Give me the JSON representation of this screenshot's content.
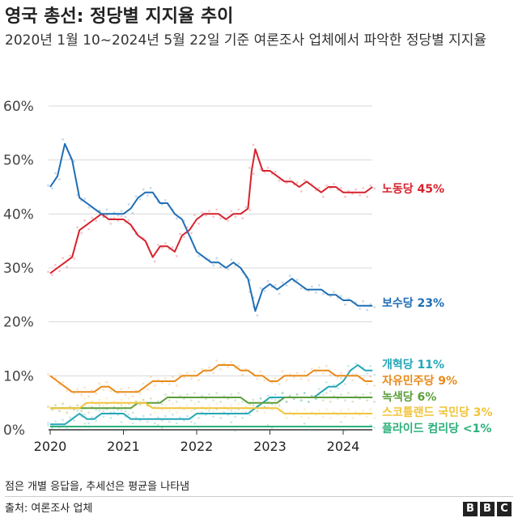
{
  "title": "영국 총선: 정당별 지지율 추이",
  "subtitle": "2020년 1월 10~2024년 5월 22일 기준 여론조사 업체에서 파악한 정당별 지지율",
  "footnote": "점은 개별 응답을, 추세선은 평균을 나타냄",
  "source": "출처: 여론조사 업체",
  "logo": [
    "B",
    "B",
    "C"
  ],
  "chart_data": {
    "type": "line",
    "y_ticks": [
      "60%",
      "50%",
      "40%",
      "30%",
      "20%",
      "10%",
      "0%"
    ],
    "x_ticks": [
      "2020",
      "2021",
      "2022",
      "2023",
      "2024"
    ],
    "ylim": [
      0,
      60
    ],
    "xlim": [
      2020.0,
      2024.4
    ],
    "grid": true,
    "series": [
      {
        "label": "노동당 45%",
        "color": "#d6222d",
        "points": [
          [
            2020.0,
            29
          ],
          [
            2020.1,
            30
          ],
          [
            2020.2,
            31
          ],
          [
            2020.3,
            32
          ],
          [
            2020.4,
            37
          ],
          [
            2020.5,
            38
          ],
          [
            2020.6,
            39
          ],
          [
            2020.7,
            40
          ],
          [
            2020.8,
            39
          ],
          [
            2020.9,
            39
          ],
          [
            2021.0,
            39
          ],
          [
            2021.1,
            38
          ],
          [
            2021.2,
            36
          ],
          [
            2021.3,
            35
          ],
          [
            2021.4,
            32
          ],
          [
            2021.5,
            34
          ],
          [
            2021.6,
            34
          ],
          [
            2021.7,
            33
          ],
          [
            2021.8,
            36
          ],
          [
            2021.9,
            37
          ],
          [
            2022.0,
            39
          ],
          [
            2022.1,
            40
          ],
          [
            2022.2,
            40
          ],
          [
            2022.3,
            40
          ],
          [
            2022.4,
            39
          ],
          [
            2022.5,
            40
          ],
          [
            2022.6,
            40
          ],
          [
            2022.7,
            41
          ],
          [
            2022.75,
            48
          ],
          [
            2022.8,
            52
          ],
          [
            2022.9,
            48
          ],
          [
            2023.0,
            48
          ],
          [
            2023.1,
            47
          ],
          [
            2023.2,
            46
          ],
          [
            2023.3,
            46
          ],
          [
            2023.4,
            45
          ],
          [
            2023.5,
            46
          ],
          [
            2023.6,
            45
          ],
          [
            2023.7,
            44
          ],
          [
            2023.8,
            45
          ],
          [
            2023.9,
            45
          ],
          [
            2024.0,
            44
          ],
          [
            2024.1,
            44
          ],
          [
            2024.2,
            44
          ],
          [
            2024.3,
            44
          ],
          [
            2024.4,
            45
          ]
        ]
      },
      {
        "label": "보수당 23%",
        "color": "#1f6eb5",
        "points": [
          [
            2020.0,
            45
          ],
          [
            2020.1,
            47
          ],
          [
            2020.2,
            53
          ],
          [
            2020.3,
            50
          ],
          [
            2020.4,
            43
          ],
          [
            2020.5,
            42
          ],
          [
            2020.6,
            41
          ],
          [
            2020.7,
            40
          ],
          [
            2020.8,
            40
          ],
          [
            2020.9,
            40
          ],
          [
            2021.0,
            40
          ],
          [
            2021.1,
            41
          ],
          [
            2021.2,
            43
          ],
          [
            2021.3,
            44
          ],
          [
            2021.4,
            44
          ],
          [
            2021.5,
            42
          ],
          [
            2021.6,
            42
          ],
          [
            2021.7,
            40
          ],
          [
            2021.8,
            39
          ],
          [
            2021.9,
            36
          ],
          [
            2022.0,
            33
          ],
          [
            2022.1,
            32
          ],
          [
            2022.2,
            31
          ],
          [
            2022.3,
            31
          ],
          [
            2022.4,
            30
          ],
          [
            2022.5,
            31
          ],
          [
            2022.6,
            30
          ],
          [
            2022.7,
            28
          ],
          [
            2022.75,
            25
          ],
          [
            2022.8,
            22
          ],
          [
            2022.9,
            26
          ],
          [
            2023.0,
            27
          ],
          [
            2023.1,
            26
          ],
          [
            2023.2,
            27
          ],
          [
            2023.3,
            28
          ],
          [
            2023.4,
            27
          ],
          [
            2023.5,
            26
          ],
          [
            2023.6,
            26
          ],
          [
            2023.7,
            26
          ],
          [
            2023.8,
            25
          ],
          [
            2023.9,
            25
          ],
          [
            2024.0,
            24
          ],
          [
            2024.1,
            24
          ],
          [
            2024.2,
            23
          ],
          [
            2024.3,
            23
          ],
          [
            2024.4,
            23
          ]
        ]
      },
      {
        "label": "개혁당 11%",
        "color": "#24a6b8",
        "points": [
          [
            2020.0,
            1
          ],
          [
            2020.1,
            1
          ],
          [
            2020.2,
            1
          ],
          [
            2020.3,
            2
          ],
          [
            2020.4,
            3
          ],
          [
            2020.5,
            2
          ],
          [
            2020.6,
            2
          ],
          [
            2020.7,
            3
          ],
          [
            2020.8,
            3
          ],
          [
            2020.9,
            3
          ],
          [
            2021.0,
            3
          ],
          [
            2021.1,
            2
          ],
          [
            2021.2,
            2
          ],
          [
            2021.3,
            2
          ],
          [
            2021.4,
            2
          ],
          [
            2021.5,
            2
          ],
          [
            2021.6,
            2
          ],
          [
            2021.7,
            2
          ],
          [
            2021.8,
            2
          ],
          [
            2021.9,
            2
          ],
          [
            2022.0,
            3
          ],
          [
            2022.1,
            3
          ],
          [
            2022.2,
            3
          ],
          [
            2022.3,
            3
          ],
          [
            2022.4,
            3
          ],
          [
            2022.5,
            3
          ],
          [
            2022.6,
            3
          ],
          [
            2022.7,
            3
          ],
          [
            2022.8,
            4
          ],
          [
            2022.9,
            5
          ],
          [
            2023.0,
            6
          ],
          [
            2023.1,
            6
          ],
          [
            2023.2,
            6
          ],
          [
            2023.3,
            6
          ],
          [
            2023.4,
            6
          ],
          [
            2023.5,
            6
          ],
          [
            2023.6,
            6
          ],
          [
            2023.7,
            7
          ],
          [
            2023.8,
            8
          ],
          [
            2023.9,
            8
          ],
          [
            2024.0,
            9
          ],
          [
            2024.1,
            11
          ],
          [
            2024.2,
            12
          ],
          [
            2024.3,
            11
          ],
          [
            2024.4,
            11
          ]
        ]
      },
      {
        "label": "자유민주당 9%",
        "color": "#e88a19",
        "points": [
          [
            2020.0,
            10
          ],
          [
            2020.1,
            9
          ],
          [
            2020.2,
            8
          ],
          [
            2020.3,
            7
          ],
          [
            2020.4,
            7
          ],
          [
            2020.5,
            7
          ],
          [
            2020.6,
            7
          ],
          [
            2020.7,
            8
          ],
          [
            2020.8,
            8
          ],
          [
            2020.9,
            7
          ],
          [
            2021.0,
            7
          ],
          [
            2021.1,
            7
          ],
          [
            2021.2,
            7
          ],
          [
            2021.3,
            8
          ],
          [
            2021.4,
            9
          ],
          [
            2021.5,
            9
          ],
          [
            2021.6,
            9
          ],
          [
            2021.7,
            9
          ],
          [
            2021.8,
            10
          ],
          [
            2021.9,
            10
          ],
          [
            2022.0,
            10
          ],
          [
            2022.1,
            11
          ],
          [
            2022.2,
            11
          ],
          [
            2022.3,
            12
          ],
          [
            2022.4,
            12
          ],
          [
            2022.5,
            12
          ],
          [
            2022.6,
            11
          ],
          [
            2022.7,
            11
          ],
          [
            2022.8,
            10
          ],
          [
            2022.9,
            10
          ],
          [
            2023.0,
            9
          ],
          [
            2023.1,
            9
          ],
          [
            2023.2,
            10
          ],
          [
            2023.3,
            10
          ],
          [
            2023.4,
            10
          ],
          [
            2023.5,
            10
          ],
          [
            2023.6,
            11
          ],
          [
            2023.7,
            11
          ],
          [
            2023.8,
            11
          ],
          [
            2023.9,
            10
          ],
          [
            2024.0,
            10
          ],
          [
            2024.1,
            10
          ],
          [
            2024.2,
            10
          ],
          [
            2024.3,
            9
          ],
          [
            2024.4,
            9
          ]
        ]
      },
      {
        "label": "녹색당 6%",
        "color": "#5a9e3a",
        "points": [
          [
            2020.0,
            4
          ],
          [
            2020.1,
            4
          ],
          [
            2020.2,
            4
          ],
          [
            2020.3,
            4
          ],
          [
            2020.4,
            4
          ],
          [
            2020.5,
            4
          ],
          [
            2020.6,
            4
          ],
          [
            2020.7,
            4
          ],
          [
            2020.8,
            4
          ],
          [
            2020.9,
            4
          ],
          [
            2021.0,
            4
          ],
          [
            2021.1,
            4
          ],
          [
            2021.2,
            5
          ],
          [
            2021.3,
            5
          ],
          [
            2021.4,
            5
          ],
          [
            2021.5,
            5
          ],
          [
            2021.6,
            6
          ],
          [
            2021.7,
            6
          ],
          [
            2021.8,
            6
          ],
          [
            2021.9,
            6
          ],
          [
            2022.0,
            6
          ],
          [
            2022.1,
            6
          ],
          [
            2022.2,
            6
          ],
          [
            2022.3,
            6
          ],
          [
            2022.4,
            6
          ],
          [
            2022.5,
            6
          ],
          [
            2022.6,
            6
          ],
          [
            2022.7,
            5
          ],
          [
            2022.8,
            5
          ],
          [
            2022.9,
            5
          ],
          [
            2023.0,
            5
          ],
          [
            2023.1,
            5
          ],
          [
            2023.2,
            6
          ],
          [
            2023.3,
            6
          ],
          [
            2023.4,
            6
          ],
          [
            2023.5,
            6
          ],
          [
            2023.6,
            6
          ],
          [
            2023.7,
            6
          ],
          [
            2023.8,
            6
          ],
          [
            2023.9,
            6
          ],
          [
            2024.0,
            6
          ],
          [
            2024.1,
            6
          ],
          [
            2024.2,
            6
          ],
          [
            2024.3,
            6
          ],
          [
            2024.4,
            6
          ]
        ]
      },
      {
        "label": "스코틀랜드 국민당 3%",
        "color": "#f0c43a",
        "points": [
          [
            2020.0,
            4
          ],
          [
            2020.1,
            4
          ],
          [
            2020.2,
            4
          ],
          [
            2020.3,
            4
          ],
          [
            2020.4,
            4
          ],
          [
            2020.5,
            5
          ],
          [
            2020.6,
            5
          ],
          [
            2020.7,
            5
          ],
          [
            2020.8,
            5
          ],
          [
            2020.9,
            5
          ],
          [
            2021.0,
            5
          ],
          [
            2021.1,
            5
          ],
          [
            2021.2,
            5
          ],
          [
            2021.3,
            5
          ],
          [
            2021.4,
            4
          ],
          [
            2021.5,
            4
          ],
          [
            2021.6,
            4
          ],
          [
            2021.7,
            4
          ],
          [
            2021.8,
            4
          ],
          [
            2021.9,
            4
          ],
          [
            2022.0,
            4
          ],
          [
            2022.1,
            4
          ],
          [
            2022.2,
            4
          ],
          [
            2022.3,
            4
          ],
          [
            2022.4,
            4
          ],
          [
            2022.5,
            4
          ],
          [
            2022.6,
            4
          ],
          [
            2022.7,
            4
          ],
          [
            2022.8,
            4
          ],
          [
            2022.9,
            4
          ],
          [
            2023.0,
            4
          ],
          [
            2023.1,
            4
          ],
          [
            2023.2,
            3
          ],
          [
            2023.3,
            3
          ],
          [
            2023.4,
            3
          ],
          [
            2023.5,
            3
          ],
          [
            2023.6,
            3
          ],
          [
            2023.7,
            3
          ],
          [
            2023.8,
            3
          ],
          [
            2023.9,
            3
          ],
          [
            2024.0,
            3
          ],
          [
            2024.1,
            3
          ],
          [
            2024.2,
            3
          ],
          [
            2024.3,
            3
          ],
          [
            2024.4,
            3
          ]
        ]
      },
      {
        "label": "플라이드 컴리당 <1%",
        "color": "#2bb07a",
        "points": [
          [
            2020.0,
            0.6
          ],
          [
            2020.5,
            0.6
          ],
          [
            2021.0,
            0.6
          ],
          [
            2021.5,
            0.6
          ],
          [
            2022.0,
            0.6
          ],
          [
            2022.5,
            0.6
          ],
          [
            2023.0,
            0.6
          ],
          [
            2023.5,
            0.6
          ],
          [
            2024.0,
            0.6
          ],
          [
            2024.4,
            0.6
          ]
        ]
      }
    ]
  }
}
